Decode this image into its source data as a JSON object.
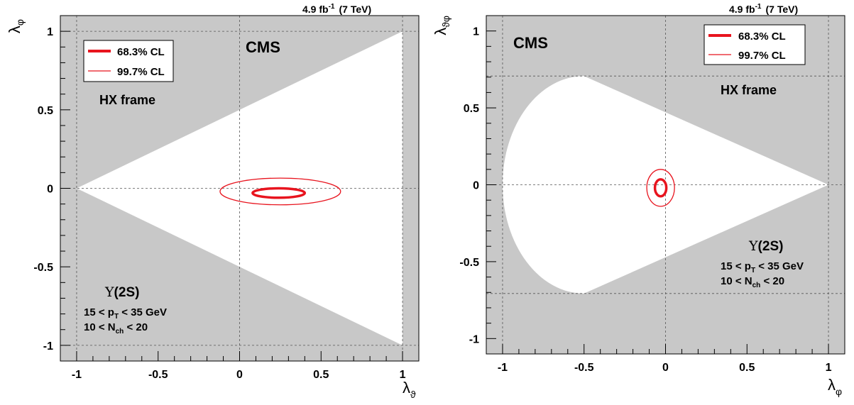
{
  "lumi": {
    "value": "4.9 fb",
    "exp": "-1",
    "energy": "(7 TeV)"
  },
  "legend": {
    "thick": "68.3% CL",
    "thin": "99.7% CL"
  },
  "labels": {
    "cms": "CMS",
    "frame": "HX frame",
    "upsilon": "Υ(2S)",
    "pt_line": {
      "a": "15 < p",
      "sub": "T",
      "b": " < 35 GeV"
    },
    "nch_line": {
      "a": "10 < N",
      "sub": "ch",
      "b": " < 20"
    }
  },
  "colors": {
    "region": "#c8c8c8",
    "allowed": "#ffffff",
    "contour": "#e8141e"
  },
  "chart_data": [
    {
      "type": "contour",
      "xlabel": {
        "main": "λ",
        "sub": "ϑ"
      },
      "ylabel": {
        "main": "λ",
        "sub": "φ"
      },
      "xlim": [
        -1.1,
        1.1
      ],
      "ylim": [
        -1.1,
        1.1
      ],
      "xticks": [
        -1,
        -0.5,
        0,
        0.5,
        1
      ],
      "yticks": [
        -1,
        -0.5,
        0,
        0.5,
        1
      ],
      "allowed_region": [
        [
          -1,
          0
        ],
        [
          1,
          1
        ],
        [
          1,
          -1
        ]
      ],
      "grid_x": [
        -1,
        0,
        1
      ],
      "grid_y": [
        -1,
        0,
        1
      ],
      "contours": [
        {
          "cl": "68.3% CL",
          "center": [
            0.24,
            -0.03
          ],
          "rx": 0.16,
          "ry": 0.03
        },
        {
          "cl": "99.7% CL",
          "center": [
            0.25,
            -0.02
          ],
          "rx": 0.37,
          "ry": 0.085
        }
      ]
    },
    {
      "type": "contour",
      "xlabel": {
        "main": "λ",
        "sub": "φ"
      },
      "ylabel": {
        "main": "λ",
        "sub": "ϑφ"
      },
      "xlim": [
        -1.1,
        1.1
      ],
      "ylim": [
        -1.1,
        1.1
      ],
      "xticks": [
        -1,
        -0.5,
        0,
        0.5,
        1
      ],
      "yticks": [
        -1,
        -0.5,
        0,
        0.5,
        1
      ],
      "allowed_region_note": "semi-ellipse x in [-1,-0.5], |y| <= 0.707, then triangle to (1,0)",
      "allowed_semi_ellipse": {
        "center": [
          -0.5,
          0
        ],
        "rx": 0.5,
        "ry": 0.707
      },
      "allowed_apex": [
        1,
        0
      ],
      "grid_x": [
        -1,
        0,
        1
      ],
      "grid_y": [
        -0.707,
        0,
        0.707
      ],
      "contours": [
        {
          "cl": "68.3% CL",
          "center": [
            -0.03,
            -0.02
          ],
          "rx": 0.035,
          "ry": 0.055
        },
        {
          "cl": "99.7% CL",
          "center": [
            -0.03,
            -0.02
          ],
          "rx": 0.085,
          "ry": 0.12
        }
      ]
    }
  ]
}
